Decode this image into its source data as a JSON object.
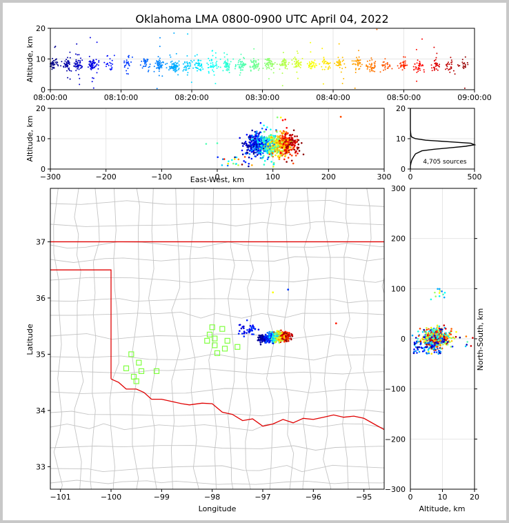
{
  "title": "Oklahoma LMA 0800-0900 UTC April 04, 2022",
  "source_count_label": "4,705 sources",
  "chart_data": [
    {
      "id": "altitude-time",
      "type": "scatter",
      "xlabel": "",
      "ylabel": "Altitude, km",
      "xticks": [
        "08:00:00",
        "08:10:00",
        "08:20:00",
        "08:30:00",
        "08:40:00",
        "08:50:00",
        "09:00:00"
      ],
      "xlim_minutes": [
        0,
        60
      ],
      "ylim": [
        0,
        20
      ],
      "yticks": [
        0,
        10,
        20
      ],
      "grid": true,
      "colormap": "jet by time",
      "clusters": [
        {
          "t": 0.5,
          "alt": 8.5,
          "n": 40
        },
        {
          "t": 2.5,
          "alt": 8,
          "n": 45
        },
        {
          "t": 4,
          "alt": 8,
          "n": 55
        },
        {
          "t": 6,
          "alt": 8,
          "n": 60
        },
        {
          "t": 8.5,
          "alt": 8.5,
          "n": 20
        },
        {
          "t": 11,
          "alt": 8.5,
          "n": 25
        },
        {
          "t": 13.5,
          "alt": 8.5,
          "n": 30
        },
        {
          "t": 15.5,
          "alt": 8,
          "n": 60
        },
        {
          "t": 17.5,
          "alt": 7.5,
          "n": 70
        },
        {
          "t": 19.5,
          "alt": 8,
          "n": 35
        },
        {
          "t": 21,
          "alt": 8,
          "n": 40
        },
        {
          "t": 23,
          "alt": 8,
          "n": 40
        },
        {
          "t": 25,
          "alt": 8,
          "n": 45
        },
        {
          "t": 27,
          "alt": 8,
          "n": 50
        },
        {
          "t": 29,
          "alt": 8,
          "n": 50
        },
        {
          "t": 31,
          "alt": 8.5,
          "n": 50
        },
        {
          "t": 33,
          "alt": 8.5,
          "n": 50
        },
        {
          "t": 35,
          "alt": 8.5,
          "n": 45
        },
        {
          "t": 37,
          "alt": 8.5,
          "n": 35
        },
        {
          "t": 39,
          "alt": 8.5,
          "n": 30
        },
        {
          "t": 41,
          "alt": 8.5,
          "n": 35
        },
        {
          "t": 43.5,
          "alt": 8.5,
          "n": 40
        },
        {
          "t": 45.5,
          "alt": 8,
          "n": 40
        },
        {
          "t": 47.5,
          "alt": 8,
          "n": 25
        },
        {
          "t": 50,
          "alt": 8,
          "n": 35
        },
        {
          "t": 52,
          "alt": 8,
          "n": 35
        },
        {
          "t": 54.5,
          "alt": 8,
          "n": 30
        },
        {
          "t": 56.5,
          "alt": 8,
          "n": 25
        },
        {
          "t": 58.5,
          "alt": 8,
          "n": 20
        }
      ]
    },
    {
      "id": "altitude-eastwest",
      "type": "scatter",
      "xlabel": "East-West, km",
      "ylabel": "Altitude, km",
      "xlim": [
        -300,
        300
      ],
      "xticks": [
        -300,
        -200,
        -100,
        0,
        100,
        200,
        300
      ],
      "ylim": [
        0,
        20
      ],
      "yticks": [
        0,
        10,
        20
      ],
      "grid": true,
      "centroid_km": [
        95,
        8
      ],
      "spread_km": [
        22,
        3
      ]
    },
    {
      "id": "altitude-histogram",
      "type": "line",
      "xlim": [
        0,
        500
      ],
      "xticks": [
        0,
        500
      ],
      "ylim": [
        0,
        20
      ],
      "yticks": [
        0,
        10,
        20
      ],
      "profile": [
        [
          0,
          0
        ],
        [
          0,
          1
        ],
        [
          5,
          2
        ],
        [
          12,
          3
        ],
        [
          25,
          4
        ],
        [
          40,
          5
        ],
        [
          90,
          6
        ],
        [
          180,
          6.5
        ],
        [
          310,
          7
        ],
        [
          430,
          7.5
        ],
        [
          500,
          8
        ],
        [
          470,
          8.5
        ],
        [
          300,
          9
        ],
        [
          120,
          9.5
        ],
        [
          40,
          10
        ],
        [
          12,
          10.5
        ],
        [
          5,
          11
        ],
        [
          2,
          12
        ],
        [
          0,
          13
        ],
        [
          0,
          20
        ]
      ]
    },
    {
      "id": "plan-view",
      "type": "scatter",
      "xlabel": "Longitude",
      "ylabel": "Latitude",
      "xlim": [
        -101.2,
        -94.6
      ],
      "xticks": [
        -101,
        -100,
        -99,
        -98,
        -97,
        -96,
        -95
      ],
      "ylim": [
        32.6,
        37.95
      ],
      "yticks": [
        33,
        34,
        35,
        36,
        37
      ],
      "grid": true,
      "stations": [
        [
          -99.6,
          35.0
        ],
        [
          -99.45,
          34.85
        ],
        [
          -99.7,
          34.75
        ],
        [
          -99.4,
          34.7
        ],
        [
          -99.55,
          34.6
        ],
        [
          -99.5,
          34.52
        ],
        [
          -99.1,
          34.7
        ],
        [
          -98.0,
          35.48
        ],
        [
          -97.8,
          35.45
        ],
        [
          -98.05,
          35.35
        ],
        [
          -97.95,
          35.28
        ],
        [
          -98.1,
          35.24
        ],
        [
          -97.7,
          35.24
        ],
        [
          -97.95,
          35.16
        ],
        [
          -97.5,
          35.13
        ],
        [
          -97.75,
          35.1
        ],
        [
          -97.9,
          35.02
        ]
      ],
      "lightning_core": {
        "lon": -96.55,
        "lat": 35.32
      },
      "lightning_tail": {
        "lon": -97.05,
        "lat": 35.27
      }
    },
    {
      "id": "altitude-northsouth",
      "type": "scatter",
      "xlabel": "Altitude, km",
      "ylabel": "North-South, km",
      "xlim": [
        0,
        20
      ],
      "xticks": [
        0,
        10,
        20
      ],
      "ylim": [
        -300,
        300
      ],
      "yticks": [
        -300,
        -200,
        -100,
        0,
        100,
        200,
        300
      ],
      "grid": true,
      "centroid_km": [
        8,
        2
      ],
      "spread_km": [
        3,
        12
      ]
    }
  ],
  "colors": {
    "state_border": "#e00000",
    "county_lines": "#c4c4c4",
    "station_marker": "#80ff40",
    "grid": "#e6e6e6"
  }
}
